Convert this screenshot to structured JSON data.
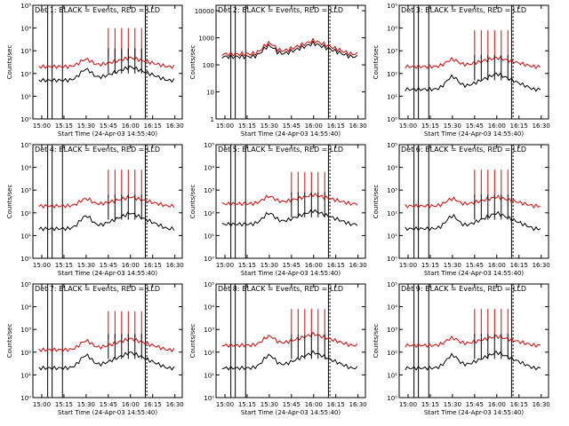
{
  "chart_data": [
    {
      "type": "line",
      "title": "Det 1: BLACK = Events, RED = LLD",
      "xlabel": "Start Time (24-Apr-03 14:55:40)",
      "ylabel": "Counts/sec",
      "x_ticks": [
        "15:00",
        "15:15",
        "15:30",
        "15:45",
        "16:00",
        "16:15",
        "16:30"
      ],
      "y_ticks": [
        "10⁰",
        "10¹",
        "10²",
        "10³",
        "10⁴",
        "10⁵"
      ],
      "ylim_log": [
        0,
        5
      ],
      "events_base": 1.7,
      "events_peak": 2.3,
      "lld_base": 2.3,
      "lld_peak": 2.7,
      "spike_height": 4.0,
      "series": [
        {
          "name": "BLACK = Events"
        },
        {
          "name": "RED = LLD"
        }
      ]
    },
    {
      "type": "line",
      "title": "Det 2: BLACK = Events, RED = LLD",
      "xlabel": "Start Time (24-Apr-03 14:55:40)",
      "ylabel": "Counts/sec",
      "x_ticks": [
        "15:00",
        "15:15",
        "15:30",
        "15:45",
        "16:00",
        "16:15",
        "16:30"
      ],
      "y_ticks": [
        "1",
        "10",
        "100",
        "1000",
        "10000"
      ],
      "ylim_log": [
        0,
        4.2
      ],
      "events_base": 2.3,
      "events_peak": 2.8,
      "lld_base": 2.4,
      "lld_peak": 2.9,
      "spike_height": 0,
      "series": [
        {
          "name": "BLACK = Events"
        },
        {
          "name": "RED = LLD"
        }
      ]
    },
    {
      "type": "line",
      "title": "Det 3: BLACK = Events, RED = LLD",
      "xlabel": "Start Time (24-Apr-03 14:55:40)",
      "ylabel": "Counts/sec",
      "x_ticks": [
        "15:00",
        "15:15",
        "15:30",
        "15:45",
        "16:00",
        "16:15",
        "16:30"
      ],
      "y_ticks": [
        "10⁰",
        "10¹",
        "10²",
        "10³",
        "10⁴",
        "10⁵"
      ],
      "ylim_log": [
        0,
        5
      ],
      "events_base": 1.3,
      "events_peak": 2.0,
      "lld_base": 2.3,
      "lld_peak": 2.7,
      "spike_height": 3.9,
      "series": [
        {
          "name": "BLACK = Events"
        },
        {
          "name": "RED = LLD"
        }
      ]
    },
    {
      "type": "line",
      "title": "Det 4: BLACK = Events, RED = LLD",
      "xlabel": "Start Time (24-Apr-03 14:55:40)",
      "ylabel": "Counts/sec",
      "x_ticks": [
        "15:00",
        "15:15",
        "15:30",
        "15:45",
        "16:00",
        "16:15",
        "16:30"
      ],
      "y_ticks": [
        "10⁰",
        "10¹",
        "10²",
        "10³",
        "10⁴",
        "10⁵"
      ],
      "ylim_log": [
        0,
        5
      ],
      "events_base": 1.3,
      "events_peak": 2.0,
      "lld_base": 2.3,
      "lld_peak": 2.7,
      "spike_height": 3.9,
      "series": [
        {
          "name": "BLACK = Events"
        },
        {
          "name": "RED = LLD"
        }
      ]
    },
    {
      "type": "line",
      "title": "Det 5: BLACK = Events, RED = LLD",
      "xlabel": "Start Time (24-Apr-03 14:55:40)",
      "ylabel": "Counts/sec",
      "x_ticks": [
        "15:00",
        "15:15",
        "15:30",
        "15:45",
        "16:00",
        "16:15",
        "16:30"
      ],
      "y_ticks": [
        "10⁰",
        "10¹",
        "10²",
        "10³",
        "10⁴",
        "10⁵"
      ],
      "ylim_log": [
        0,
        5
      ],
      "events_base": 1.5,
      "events_peak": 2.1,
      "lld_base": 2.4,
      "lld_peak": 2.8,
      "spike_height": 3.8,
      "series": [
        {
          "name": "BLACK = Events"
        },
        {
          "name": "RED = LLD"
        }
      ]
    },
    {
      "type": "line",
      "title": "Det 6: BLACK = Events, RED = LLD",
      "xlabel": "Start Time (24-Apr-03 14:55:40)",
      "ylabel": "Counts/sec",
      "x_ticks": [
        "15:00",
        "15:15",
        "15:30",
        "15:45",
        "16:00",
        "16:15",
        "16:30"
      ],
      "y_ticks": [
        "10⁰",
        "10¹",
        "10²",
        "10³",
        "10⁴",
        "10⁵"
      ],
      "ylim_log": [
        0,
        5
      ],
      "events_base": 1.3,
      "events_peak": 2.0,
      "lld_base": 2.3,
      "lld_peak": 2.7,
      "spike_height": 3.9,
      "series": [
        {
          "name": "BLACK = Events"
        },
        {
          "name": "RED = LLD"
        }
      ]
    },
    {
      "type": "line",
      "title": "Det 7: BLACK = Events, RED = LLD",
      "xlabel": "Start Time (24-Apr-03 14:55:40)",
      "ylabel": "Counts/sec",
      "x_ticks": [
        "15:00",
        "15:15",
        "15:30",
        "15:45",
        "16:00",
        "16:15",
        "16:30"
      ],
      "y_ticks": [
        "10⁰",
        "10¹",
        "10²",
        "10³",
        "10⁴",
        "10⁵"
      ],
      "ylim_log": [
        0,
        5
      ],
      "events_base": 1.3,
      "events_peak": 2.0,
      "lld_base": 2.1,
      "lld_peak": 2.6,
      "spike_height": 3.8,
      "series": [
        {
          "name": "BLACK = Events"
        },
        {
          "name": "RED = LLD"
        }
      ]
    },
    {
      "type": "line",
      "title": "Det 8: BLACK = Events, RED = LLD",
      "xlabel": "Start Time (24-Apr-03 14:55:40)",
      "ylabel": "Counts/sec",
      "x_ticks": [
        "15:00",
        "15:15",
        "15:30",
        "15:45",
        "16:00",
        "16:15",
        "16:30"
      ],
      "y_ticks": [
        "10⁰",
        "10¹",
        "10²",
        "10³",
        "10⁴",
        "10⁵"
      ],
      "ylim_log": [
        0,
        5
      ],
      "events_base": 1.3,
      "events_peak": 2.0,
      "lld_base": 2.3,
      "lld_peak": 2.8,
      "spike_height": 3.9,
      "series": [
        {
          "name": "BLACK = Events"
        },
        {
          "name": "RED = LLD"
        }
      ]
    },
    {
      "type": "line",
      "title": "Det 9: BLACK = Events, RED = LLD",
      "xlabel": "Start Time (24-Apr-03 14:55:40)",
      "ylabel": "Counts/sec",
      "x_ticks": [
        "15:00",
        "15:15",
        "15:30",
        "15:45",
        "16:00",
        "16:15",
        "16:30"
      ],
      "y_ticks": [
        "10⁰",
        "10¹",
        "10²",
        "10³",
        "10⁴",
        "10⁵"
      ],
      "ylim_log": [
        0,
        5
      ],
      "events_base": 1.3,
      "events_peak": 2.0,
      "lld_base": 2.3,
      "lld_peak": 2.7,
      "spike_height": 3.9,
      "series": [
        {
          "name": "BLACK = Events"
        },
        {
          "name": "RED = LLD"
        }
      ]
    }
  ],
  "colors": {
    "events": "#000000",
    "lld": "#e00000",
    "background": "#ffffff"
  }
}
